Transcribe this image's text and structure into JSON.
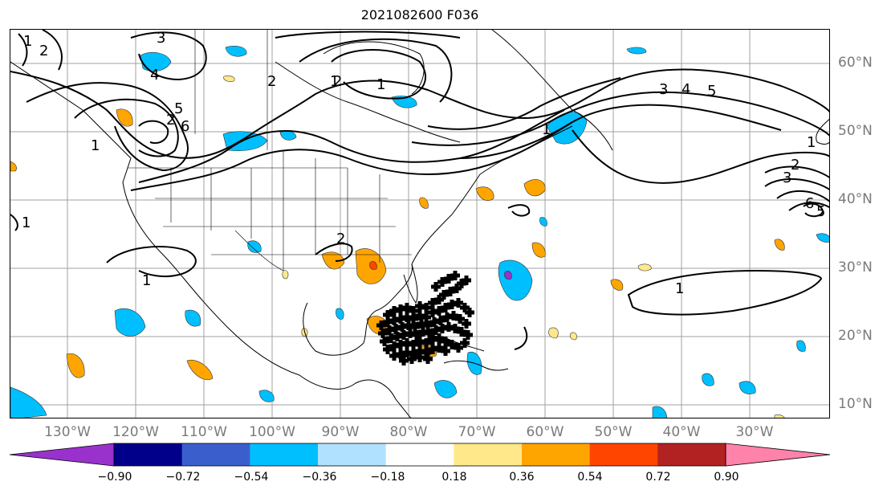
{
  "title": "2021082600 F036",
  "lon_labels": [
    "130°W",
    "120°W",
    "110°W",
    "100°W",
    "90°W",
    "80°W",
    "70°W",
    "60°W",
    "50°W",
    "40°W",
    "30°W"
  ],
  "lat_labels": [
    "60°N",
    "50°N",
    "40°N",
    "30°N",
    "20°N",
    "10°N"
  ],
  "contour_labels": [
    {
      "text": "1"
    },
    {
      "text": "2"
    },
    {
      "text": "3"
    },
    {
      "text": "4"
    },
    {
      "text": "5"
    },
    {
      "text": "6"
    },
    {
      "text": "1"
    },
    {
      "text": "1"
    },
    {
      "text": "2"
    },
    {
      "text": "1"
    },
    {
      "text": "2"
    },
    {
      "text": "1"
    },
    {
      "text": "3"
    },
    {
      "text": "4"
    },
    {
      "text": "5"
    },
    {
      "text": "1"
    },
    {
      "text": "1"
    },
    {
      "text": "2"
    },
    {
      "text": "3"
    },
    {
      "text": "6"
    },
    {
      "text": "5"
    },
    {
      "text": "1"
    },
    {
      "text": "1"
    },
    {
      "text": "2"
    },
    {
      "text": "2"
    }
  ],
  "colorbar": {
    "colors": [
      "#9932cc",
      "#00008b",
      "#3a5fcd",
      "#00bfff",
      "#b0e2ff",
      "#ffffff",
      "#ffe88a",
      "#ffa500",
      "#ff4500",
      "#b22222",
      "#ff82ab"
    ],
    "ticks": [
      "−0.90",
      "−0.72",
      "−0.54",
      "−0.36",
      "−0.18",
      "0.18",
      "0.36",
      "0.54",
      "0.72",
      "0.90"
    ]
  },
  "legend_colors": {
    "contour": "#000000",
    "grid": "#a0a0a0",
    "markers": "#000000"
  }
}
